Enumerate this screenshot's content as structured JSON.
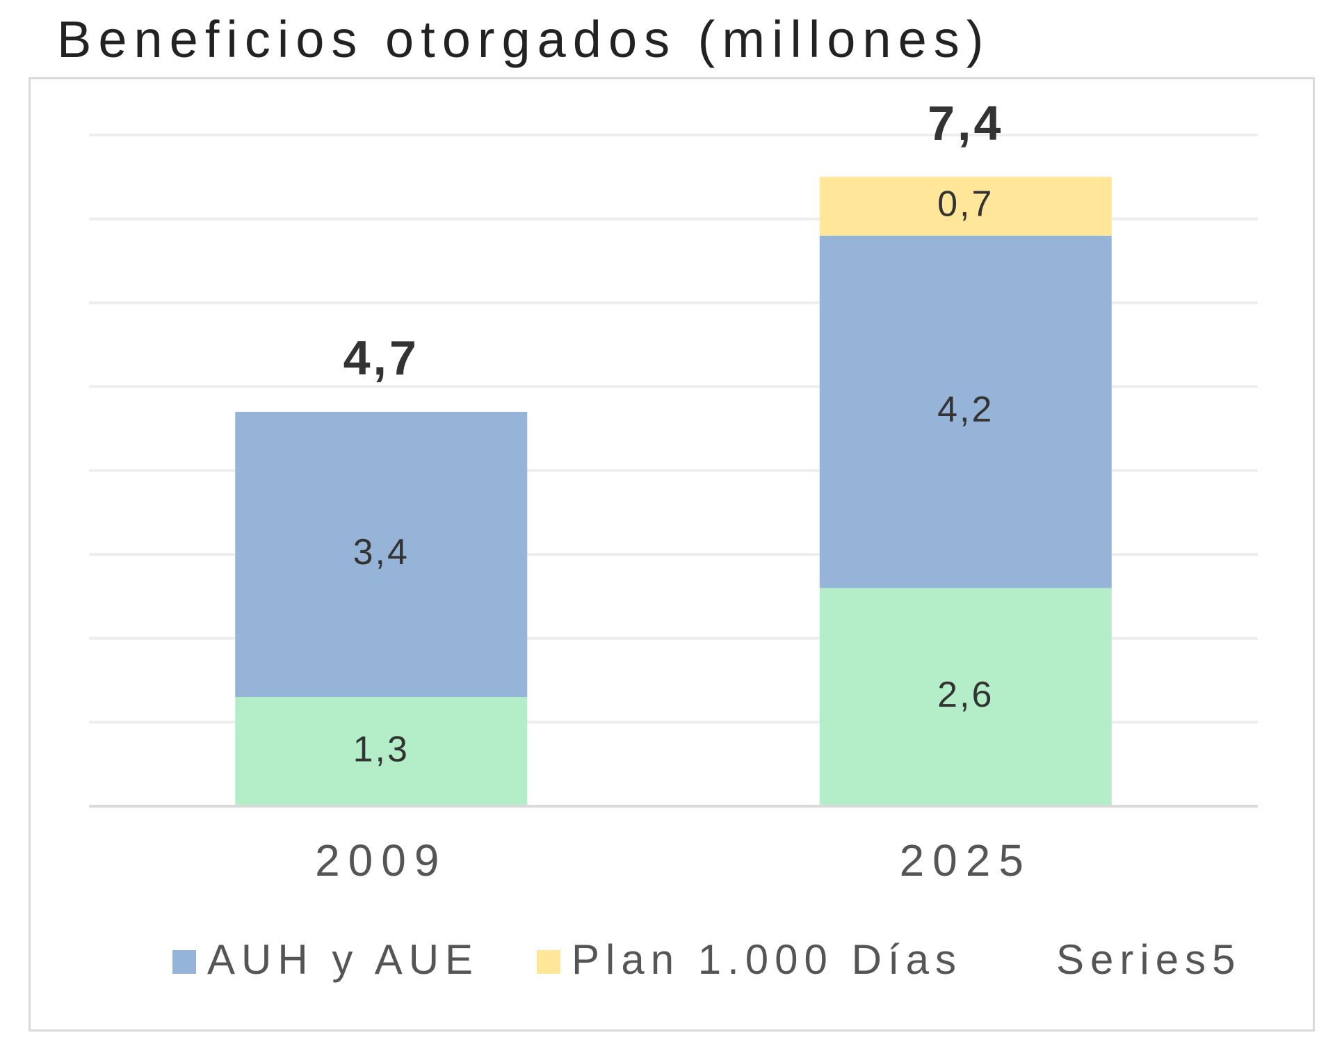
{
  "chart_data": {
    "type": "bar",
    "stacked": true,
    "title": "Beneficios otorgados (millones)",
    "categories": [
      "2009",
      "2025"
    ],
    "series": [
      {
        "name": "Series5",
        "values": [
          1.3,
          2.6
        ],
        "labels": [
          "1,3",
          "2,6"
        ],
        "color": "#b3eec8"
      },
      {
        "name": "AUH y AUE",
        "values": [
          3.4,
          4.2
        ],
        "labels": [
          "3,4",
          "4,2"
        ],
        "color": "#96b3d8"
      },
      {
        "name": "Plan 1.000 Días",
        "values": [
          0,
          0.7
        ],
        "labels": [
          "",
          "0,7"
        ],
        "color": "#ffe699"
      }
    ],
    "totals": [
      4.7,
      7.4
    ],
    "total_labels": [
      "4,7",
      "7,4"
    ],
    "ylim": [
      0,
      8
    ],
    "grid": true,
    "legend": {
      "position": "bottom",
      "entries": [
        {
          "label": "AUH y AUE",
          "color": "#96b3d8",
          "swatch": true
        },
        {
          "label": "Plan 1.000 Días",
          "color": "#ffe699",
          "swatch": true
        },
        {
          "label": "Series5",
          "color": "#b3eec8",
          "swatch": false
        }
      ]
    }
  }
}
